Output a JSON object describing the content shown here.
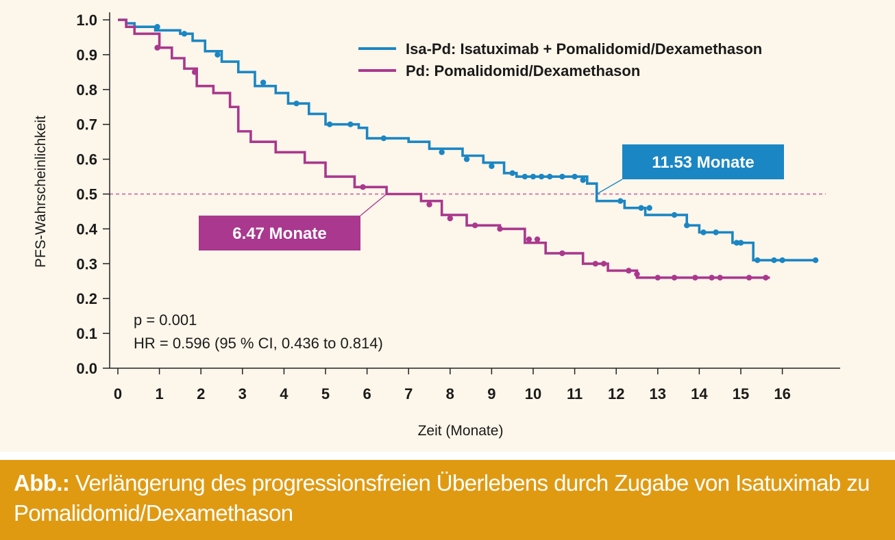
{
  "chart_data": {
    "type": "line",
    "subtype": "kaplan-meier-step",
    "ylabel": "PFS-Wahrscheinlichkeit",
    "xlabel": "Zeit (Monate)",
    "xlim": [
      0,
      17
    ],
    "ylim": [
      0,
      1
    ],
    "x_ticks": [
      "0",
      "1",
      "2",
      "3",
      "4",
      "5",
      "6",
      "7",
      "8",
      "9",
      "10",
      "11",
      "12",
      "13",
      "14",
      "15",
      "16"
    ],
    "y_ticks": [
      "0.0",
      "0.1",
      "0.2",
      "0.3",
      "0.4",
      "0.5",
      "0.6",
      "0.7",
      "0.8",
      "0.9",
      "1.0"
    ],
    "reference_line": {
      "y": 0.5,
      "style": "dashed",
      "color": "#c45aa0"
    },
    "legend_position": "top-right",
    "series": [
      {
        "name": "Isa-Pd: Isatuximab + Pomalidomid/Dexamethason",
        "color": "#1b86c4",
        "steps": [
          [
            0,
            1.0
          ],
          [
            0.2,
            0.99
          ],
          [
            0.4,
            0.98
          ],
          [
            0.9,
            0.97
          ],
          [
            1.5,
            0.96
          ],
          [
            1.8,
            0.94
          ],
          [
            2.1,
            0.91
          ],
          [
            2.5,
            0.88
          ],
          [
            2.9,
            0.85
          ],
          [
            3.3,
            0.81
          ],
          [
            3.8,
            0.79
          ],
          [
            4.1,
            0.76
          ],
          [
            4.6,
            0.73
          ],
          [
            5.0,
            0.7
          ],
          [
            5.8,
            0.69
          ],
          [
            6.0,
            0.66
          ],
          [
            7.0,
            0.65
          ],
          [
            7.5,
            0.63
          ],
          [
            8.3,
            0.61
          ],
          [
            8.8,
            0.59
          ],
          [
            9.3,
            0.56
          ],
          [
            9.6,
            0.55
          ],
          [
            11.3,
            0.53
          ],
          [
            11.53,
            0.48
          ],
          [
            12.2,
            0.46
          ],
          [
            12.7,
            0.44
          ],
          [
            13.7,
            0.41
          ],
          [
            14.0,
            0.39
          ],
          [
            14.8,
            0.36
          ],
          [
            15.3,
            0.31
          ],
          [
            16.8,
            0.31
          ]
        ],
        "censor": [
          [
            0.95,
            0.98
          ],
          [
            1.6,
            0.96
          ],
          [
            2.4,
            0.9
          ],
          [
            3.5,
            0.82
          ],
          [
            4.3,
            0.76
          ],
          [
            5.1,
            0.7
          ],
          [
            5.6,
            0.7
          ],
          [
            6.4,
            0.66
          ],
          [
            7.8,
            0.62
          ],
          [
            8.4,
            0.6
          ],
          [
            9.0,
            0.58
          ],
          [
            9.5,
            0.56
          ],
          [
            9.8,
            0.55
          ],
          [
            10.0,
            0.55
          ],
          [
            10.2,
            0.55
          ],
          [
            10.4,
            0.55
          ],
          [
            10.7,
            0.55
          ],
          [
            11.0,
            0.55
          ],
          [
            11.2,
            0.54
          ],
          [
            12.1,
            0.48
          ],
          [
            12.6,
            0.46
          ],
          [
            12.8,
            0.46
          ],
          [
            13.4,
            0.44
          ],
          [
            13.7,
            0.41
          ],
          [
            14.1,
            0.39
          ],
          [
            14.4,
            0.39
          ],
          [
            14.9,
            0.36
          ],
          [
            15.0,
            0.36
          ],
          [
            15.4,
            0.31
          ],
          [
            15.8,
            0.31
          ],
          [
            16.0,
            0.31
          ],
          [
            16.8,
            0.31
          ]
        ]
      },
      {
        "name": "Pd: Pomalidomid/Dexamethason",
        "color": "#a9388e",
        "steps": [
          [
            0,
            1.0
          ],
          [
            0.2,
            0.98
          ],
          [
            0.4,
            0.96
          ],
          [
            1.0,
            0.92
          ],
          [
            1.3,
            0.89
          ],
          [
            1.6,
            0.86
          ],
          [
            1.9,
            0.81
          ],
          [
            2.3,
            0.79
          ],
          [
            2.7,
            0.75
          ],
          [
            2.9,
            0.68
          ],
          [
            3.2,
            0.65
          ],
          [
            3.8,
            0.62
          ],
          [
            4.5,
            0.59
          ],
          [
            5.0,
            0.55
          ],
          [
            5.7,
            0.52
          ],
          [
            6.47,
            0.5
          ],
          [
            7.3,
            0.48
          ],
          [
            7.8,
            0.44
          ],
          [
            8.4,
            0.41
          ],
          [
            9.2,
            0.4
          ],
          [
            9.8,
            0.36
          ],
          [
            10.3,
            0.33
          ],
          [
            11.2,
            0.3
          ],
          [
            11.8,
            0.28
          ],
          [
            12.5,
            0.26
          ],
          [
            15.7,
            0.26
          ]
        ],
        "censor": [
          [
            0.95,
            0.92
          ],
          [
            1.85,
            0.85
          ],
          [
            5.9,
            0.52
          ],
          [
            7.5,
            0.47
          ],
          [
            8.0,
            0.43
          ],
          [
            8.6,
            0.41
          ],
          [
            9.2,
            0.4
          ],
          [
            9.9,
            0.37
          ],
          [
            10.1,
            0.37
          ],
          [
            10.7,
            0.33
          ],
          [
            11.5,
            0.3
          ],
          [
            11.7,
            0.3
          ],
          [
            12.3,
            0.28
          ],
          [
            12.5,
            0.27
          ],
          [
            13.0,
            0.26
          ],
          [
            13.4,
            0.26
          ],
          [
            13.9,
            0.26
          ],
          [
            14.3,
            0.26
          ],
          [
            14.5,
            0.26
          ],
          [
            15.2,
            0.26
          ],
          [
            15.6,
            0.26
          ]
        ]
      }
    ],
    "annotations": [
      {
        "text": "11.53 Monate",
        "x": 11.53,
        "y": 0.5,
        "color": "#1b86c4"
      },
      {
        "text": "6.47 Monate",
        "x": 6.47,
        "y": 0.5,
        "color": "#a9388e"
      }
    ],
    "stats": [
      "p = 0.001",
      "HR = 0.596 (95 % CI, 0.436 to 0.814)"
    ]
  },
  "caption": {
    "label": "Abb.:",
    "text": " Verlängerung des progressionsfreien Überlebens durch Zugabe von Isatuximab zu Pomalidomid/Dexamethason"
  },
  "colors": {
    "background": "#fdf6ea",
    "caption_bar": "#e09a12",
    "isa_pd": "#1b86c4",
    "pd": "#a9388e"
  }
}
